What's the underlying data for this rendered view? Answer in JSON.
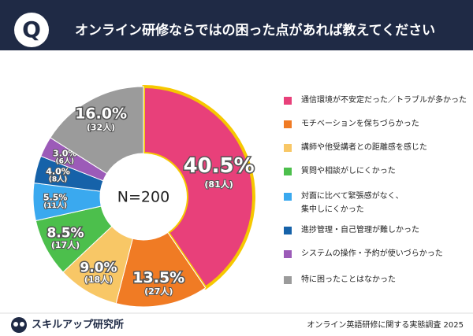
{
  "header": {
    "icon": "Q",
    "title": "オンライン研修ならではの困った点があれば教えてください"
  },
  "chart_data": {
    "type": "donut",
    "center_label": "N=200",
    "categories": [
      "通信環境が不安定だった／トラブルが多かった",
      "モチベーションを保ちづらかった",
      "講師や他受講者との距離感を感じた",
      "質問や相談がしにくかった",
      "対面に比べて緊張感がなく、\n集中しにくかった",
      "進捗管理・自己管理が難しかった",
      "システムの操作・予約が使いづらかった",
      "特に困ったことはなかった"
    ],
    "values": [
      40.5,
      13.5,
      9.0,
      8.5,
      5.5,
      4.0,
      3.0,
      16.0
    ],
    "value_labels": [
      "40.5%",
      "13.5%",
      "9.0%",
      "8.5%",
      "5.5%",
      "4.0%",
      "3.0%",
      "16.0%"
    ],
    "counts": [
      81,
      27,
      18,
      17,
      11,
      8,
      6,
      32
    ],
    "count_labels": [
      "(81人)",
      "(27人)",
      "(18人)",
      "(17人)",
      "(11人)",
      "(8人)",
      "(6人)",
      "(32人)"
    ],
    "colors": [
      "#e8407a",
      "#f07b24",
      "#f8c766",
      "#4cbf4c",
      "#3aa9ef",
      "#1662a9",
      "#9c5bb8",
      "#9b9b9b"
    ],
    "highlight_color": "#f6c800"
  },
  "footer": {
    "brand": "スキルアップ研究所",
    "source": "オンライン英語研修に関する実態調査 2025"
  }
}
